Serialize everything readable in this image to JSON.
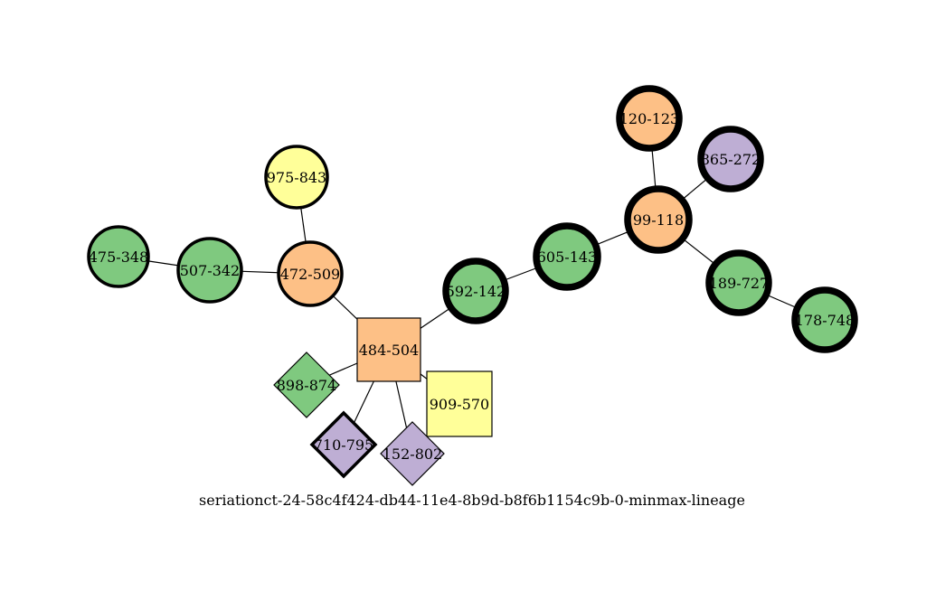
{
  "caption": "seriationct-24-58c4f424-db44-11e4-8b9d-b8f6b1154c9b-0-minmax-lineage",
  "colors": {
    "green": "#7fc97f",
    "orange": "#fdc086",
    "yellow": "#ffff99",
    "purple": "#beaed4",
    "edge": "#000000"
  },
  "nodes": [
    {
      "id": "120-123",
      "label": "120-123",
      "shape": "circle",
      "color": "orange",
      "border": "heavy"
    },
    {
      "id": "865-272",
      "label": "865-272",
      "shape": "circle",
      "color": "purple",
      "border": "heavy"
    },
    {
      "id": "99-118",
      "label": "99-118",
      "shape": "circle",
      "color": "orange",
      "border": "heavy"
    },
    {
      "id": "975-843",
      "label": "975-843",
      "shape": "circle",
      "color": "yellow",
      "border": "medium"
    },
    {
      "id": "475-348",
      "label": "475-348",
      "shape": "circle",
      "color": "green",
      "border": "medium"
    },
    {
      "id": "507-342",
      "label": "507-342",
      "shape": "circle",
      "color": "green",
      "border": "medium"
    },
    {
      "id": "472-509",
      "label": "472-509",
      "shape": "circle",
      "color": "orange",
      "border": "medium"
    },
    {
      "id": "605-143",
      "label": "605-143",
      "shape": "circle",
      "color": "green",
      "border": "heavy"
    },
    {
      "id": "592-142",
      "label": "592-142",
      "shape": "circle",
      "color": "green",
      "border": "heavy"
    },
    {
      "id": "189-727",
      "label": "189-727",
      "shape": "circle",
      "color": "green",
      "border": "heavy"
    },
    {
      "id": "178-748",
      "label": "178-748",
      "shape": "circle",
      "color": "green",
      "border": "heavy"
    },
    {
      "id": "484-504",
      "label": "484-504",
      "shape": "square",
      "color": "orange",
      "border": "thin"
    },
    {
      "id": "909-570",
      "label": "909-570",
      "shape": "square",
      "color": "yellow",
      "border": "thin"
    },
    {
      "id": "898-874",
      "label": "898-874",
      "shape": "diamond",
      "color": "green",
      "border": "thin"
    },
    {
      "id": "710-795",
      "label": "710-795",
      "shape": "diamond",
      "color": "purple",
      "border": "medium"
    },
    {
      "id": "152-802",
      "label": "152-802",
      "shape": "diamond",
      "color": "purple",
      "border": "thin"
    }
  ],
  "edges": [
    [
      "120-123",
      "99-118"
    ],
    [
      "865-272",
      "99-118"
    ],
    [
      "99-118",
      "605-143"
    ],
    [
      "99-118",
      "189-727"
    ],
    [
      "189-727",
      "178-748"
    ],
    [
      "605-143",
      "592-142"
    ],
    [
      "592-142",
      "484-504"
    ],
    [
      "975-843",
      "472-509"
    ],
    [
      "475-348",
      "507-342"
    ],
    [
      "507-342",
      "472-509"
    ],
    [
      "472-509",
      "484-504"
    ],
    [
      "484-504",
      "898-874"
    ],
    [
      "484-504",
      "710-795"
    ],
    [
      "484-504",
      "152-802"
    ],
    [
      "484-504",
      "909-570"
    ]
  ]
}
